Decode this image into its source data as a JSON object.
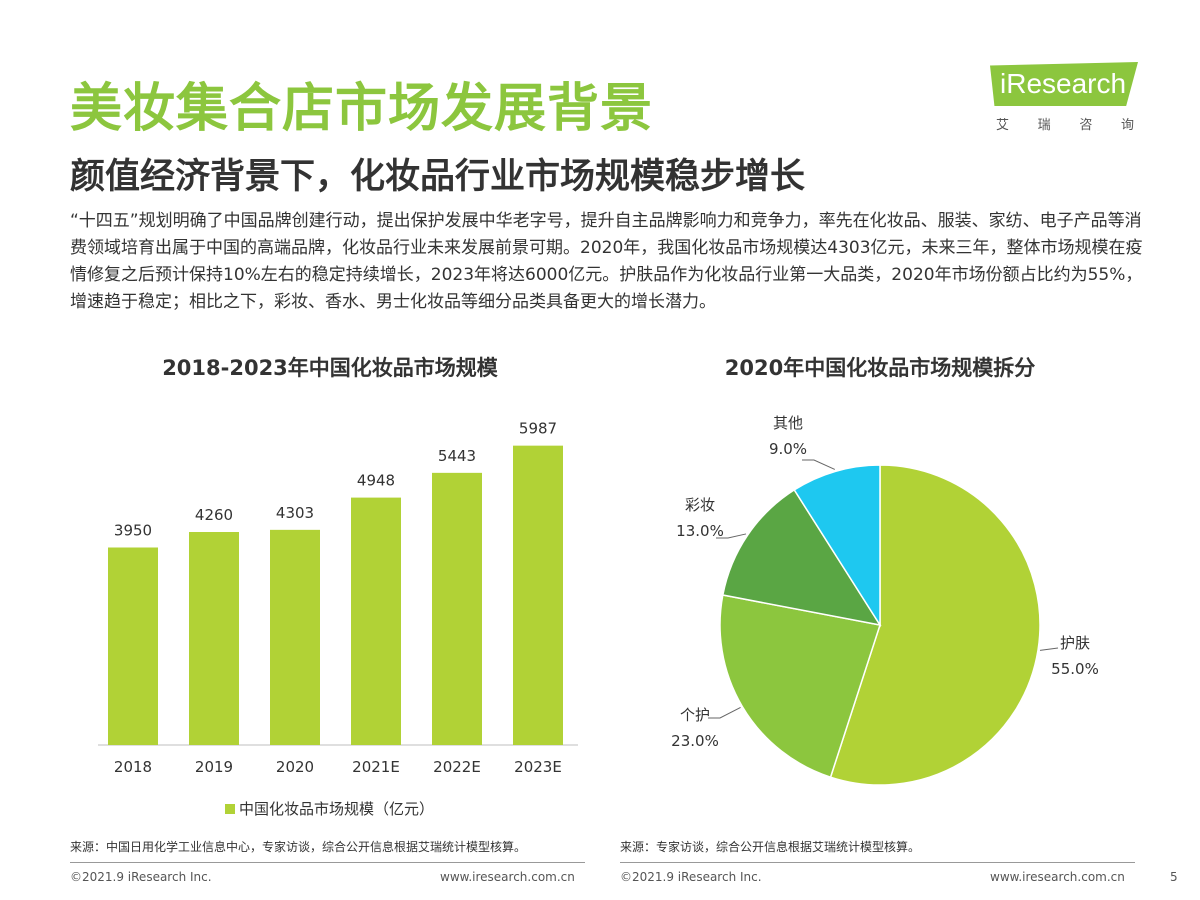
{
  "header": {
    "title": "美妆集合店市场发展背景",
    "subtitle": "颜值经济背景下，化妆品行业市场规模稳步增长"
  },
  "logo": {
    "text": "iResearch",
    "cn": [
      "艾",
      "瑞",
      "咨",
      "询"
    ]
  },
  "body_text": "“十四五”规划明确了中国品牌创建行动，提出保护发展中华老字号，提升自主品牌影响力和竞争力，率先在化妆品、服装、家纺、电子产品等消费领域培育出属于中国的高端品牌，化妆品行业未来发展前景可期。2020年，我国化妆品市场规模达4303亿元，未来三年，整体市场规模在疫情修复之后预计保持10%左右的稳定持续增长，2023年将达6000亿元。护肤品作为化妆品行业第一大品类，2020年市场份额占比约为55%，增速趋于稳定；相比之下，彩妆、香水、男士化妆品等细分品类具备更大的增长潜力。",
  "chart_data": [
    {
      "type": "bar",
      "title": "2018-2023年中国化妆品市场规模",
      "categories": [
        "2018",
        "2019",
        "2020",
        "2021E",
        "2022E",
        "2023E"
      ],
      "series": [
        {
          "name": "中国化妆品市场规模（亿元）",
          "values": [
            3950,
            4260,
            4303,
            4948,
            5443,
            5987
          ],
          "color": "#b1d236"
        }
      ],
      "ylim": [
        0,
        6000
      ],
      "grid": false,
      "legend": "bottom"
    },
    {
      "type": "pie",
      "title": "2020年中国化妆品市场规模拆分",
      "slices": [
        {
          "label": "护肤",
          "value": 55.0,
          "display": "55.0%",
          "color": "#b1d236"
        },
        {
          "label": "个护",
          "value": 23.0,
          "display": "23.0%",
          "color": "#8cc63e"
        },
        {
          "label": "彩妆",
          "value": 13.0,
          "display": "13.0%",
          "color": "#5aa644"
        },
        {
          "label": "其他",
          "value": 9.0,
          "display": "9.0%",
          "color": "#1ec8f0"
        }
      ]
    }
  ],
  "sources": {
    "left": "来源：中国日用化学工业信息中心，专家访谈，综合公开信息根据艾瑞统计模型核算。",
    "right": "来源：专家访谈，综合公开信息根据艾瑞统计模型核算。"
  },
  "footer": {
    "copyright": "©2021.9 iResearch Inc.",
    "url": "www.iresearch.com.cn",
    "page": "5"
  }
}
